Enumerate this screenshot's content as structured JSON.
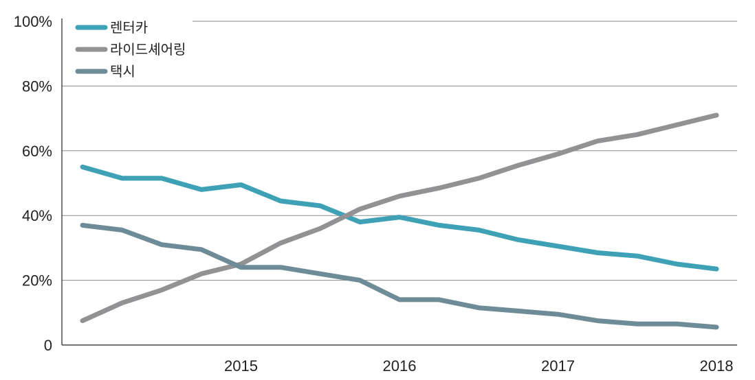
{
  "chart_data": {
    "type": "line",
    "x": [
      2014.0,
      2014.25,
      2014.5,
      2014.75,
      2015.0,
      2015.25,
      2015.5,
      2015.75,
      2016.0,
      2016.25,
      2016.5,
      2016.75,
      2017.0,
      2017.25,
      2017.5,
      2017.75,
      2018.0
    ],
    "x_ticks": [
      2015,
      2016,
      2017,
      2018
    ],
    "x_tick_labels": [
      "2015",
      "2016",
      "2017",
      "2018"
    ],
    "y_ticks": [
      0,
      20,
      40,
      60,
      80,
      100
    ],
    "y_tick_labels": [
      "0",
      "20%",
      "40%",
      "60%",
      "80%",
      "100%"
    ],
    "xlim": [
      2013.87,
      2018.13
    ],
    "ylim": [
      0,
      100
    ],
    "grid": "horizontal",
    "legend_position": "top-left",
    "series": [
      {
        "name": "렌터카",
        "color": "#3ea1b5",
        "values": [
          55,
          51.5,
          51.5,
          48,
          49.5,
          44.5,
          43,
          38,
          39.5,
          37,
          35.5,
          32.5,
          30.5,
          28.5,
          27.5,
          25,
          23.5
        ]
      },
      {
        "name": "라이드셰어링",
        "color": "#929295",
        "values": [
          7.5,
          13,
          17,
          22,
          25,
          31.5,
          36,
          42,
          46,
          48.5,
          51.5,
          55.5,
          59,
          63,
          65,
          68,
          71
        ]
      },
      {
        "name": "택시",
        "color": "#6e8c98",
        "values": [
          37,
          35.5,
          31,
          29.5,
          24,
          24,
          22,
          20,
          14,
          14,
          11.5,
          10.5,
          9.5,
          7.5,
          6.5,
          6.5,
          5.5
        ]
      }
    ]
  }
}
